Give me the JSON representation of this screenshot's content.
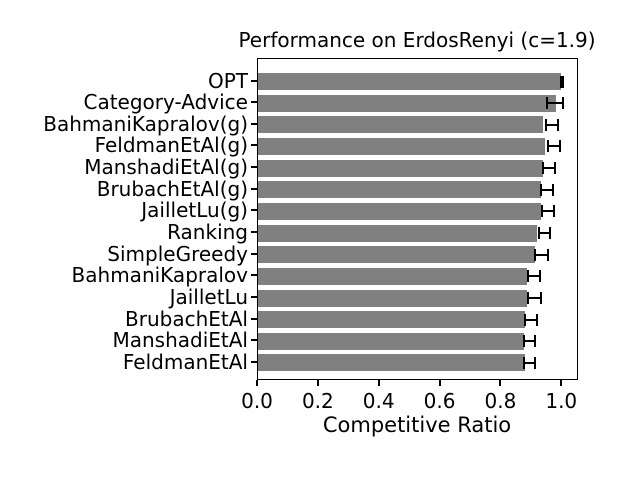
{
  "chart_data": {
    "type": "bar",
    "orientation": "horizontal",
    "title": "Performance on ErdosRenyi (c=1.9)",
    "xlabel": "Competitive Ratio",
    "ylabel": "",
    "categories": [
      "OPT",
      "Category-Advice",
      "BahmaniKapralov(g)",
      "FeldmanEtAl(g)",
      "ManshadiEtAl(g)",
      "BrubachEtAl(g)",
      "JailletLu(g)",
      "Ranking",
      "SimpleGreedy",
      "BahmaniKapralov",
      "JailletLu",
      "BrubachEtAl",
      "ManshadiEtAl",
      "FeldmanEtAl"
    ],
    "values": [
      0.997,
      0.978,
      0.938,
      0.942,
      0.938,
      0.931,
      0.929,
      0.918,
      0.91,
      0.883,
      0.885,
      0.879,
      0.874,
      0.877
    ],
    "error_low": [
      0.997,
      0.951,
      0.946,
      0.953,
      0.938,
      0.931,
      0.932,
      0.923,
      0.912,
      0.887,
      0.887,
      0.879,
      0.874,
      0.874
    ],
    "error_high": [
      1.001,
      1.003,
      0.986,
      0.992,
      0.977,
      0.97,
      0.972,
      0.961,
      0.953,
      0.926,
      0.929,
      0.918,
      0.91,
      0.912
    ],
    "xlim": [
      0,
      1.055
    ],
    "xticks": [
      0.0,
      0.2,
      0.4,
      0.6,
      0.8,
      1.0
    ],
    "xtick_labels": [
      "0.0",
      "0.2",
      "0.4",
      "0.6",
      "0.8",
      "1.0"
    ],
    "grid": false,
    "legend": null,
    "bar_color": "#808080",
    "error_color": "#000000",
    "text_color": "#000000",
    "background": "#ffffff"
  }
}
